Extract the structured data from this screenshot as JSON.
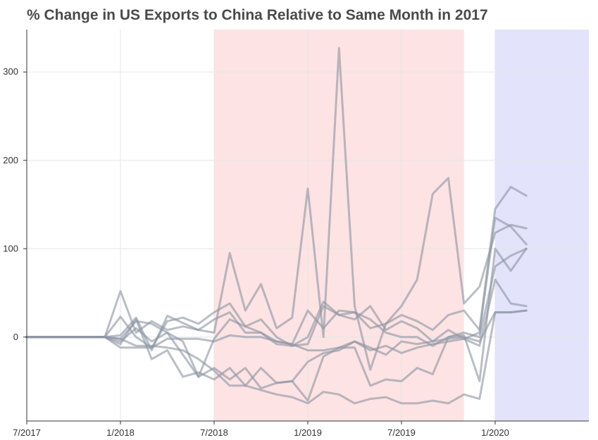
{
  "chart_data": {
    "type": "line",
    "title": "% Change in US Exports to China Relative to Same Month in 2017",
    "xlabel": "",
    "ylabel": "",
    "x": [
      "2017-07",
      "2017-08",
      "2017-09",
      "2017-10",
      "2017-11",
      "2017-12",
      "2018-01",
      "2018-02",
      "2018-03",
      "2018-04",
      "2018-05",
      "2018-06",
      "2018-07",
      "2018-08",
      "2018-09",
      "2018-10",
      "2018-11",
      "2018-12",
      "2019-01",
      "2019-02",
      "2019-03",
      "2019-04",
      "2019-05",
      "2019-06",
      "2019-07",
      "2019-08",
      "2019-09",
      "2019-10",
      "2019-11",
      "2019-12",
      "2020-01",
      "2020-02",
      "2020-03"
    ],
    "x_ticks": [
      "2017-07",
      "2018-01",
      "2018-07",
      "2019-01",
      "2019-07",
      "2020-01"
    ],
    "x_tick_labels": [
      "7/2017",
      "1/2018",
      "7/2018",
      "1/2019",
      "7/2019",
      "1/2020"
    ],
    "y_ticks": [
      0,
      100,
      200,
      300
    ],
    "y_tick_labels": [
      "0",
      "100",
      "200",
      "300"
    ],
    "xlim": [
      "2017-07",
      "2020-07"
    ],
    "ylim": [
      -95,
      348
    ],
    "grid": true,
    "legend": "none",
    "shaded_regions": [
      {
        "from": "2018-07",
        "to": "2019-11",
        "color": "#fde3e3"
      },
      {
        "from": "2020-01",
        "to": "2020-07",
        "color": "#e3e3fb"
      }
    ],
    "line_color": "#8e96a4",
    "axis_color": "#333333",
    "grid_color": "#e6e6e6",
    "series": [
      {
        "values": [
          0,
          0,
          0,
          0,
          0,
          0,
          2,
          22,
          -15,
          24,
          16,
          8,
          5,
          95,
          30,
          60,
          10,
          22,
          168,
          0,
          327,
          35,
          -37,
          15,
          35,
          65,
          162,
          180,
          38,
          57,
          118,
          127,
          123
        ]
      },
      {
        "values": [
          0,
          0,
          0,
          0,
          0,
          0,
          52,
          5,
          18,
          8,
          12,
          8,
          20,
          28,
          5,
          5,
          -5,
          -8,
          30,
          10,
          30,
          28,
          10,
          15,
          25,
          18,
          8,
          25,
          30,
          8,
          145,
          170,
          160
        ]
      },
      {
        "values": [
          0,
          0,
          0,
          0,
          0,
          0,
          23,
          0,
          -12,
          18,
          22,
          15,
          28,
          38,
          12,
          5,
          -8,
          -10,
          0,
          40,
          25,
          20,
          35,
          8,
          18,
          10,
          -5,
          8,
          -2,
          5,
          135,
          125,
          105
        ]
      },
      {
        "values": [
          0,
          0,
          0,
          0,
          0,
          0,
          -2,
          18,
          15,
          5,
          -5,
          -45,
          -2,
          20,
          12,
          20,
          0,
          -10,
          -8,
          35,
          25,
          28,
          20,
          5,
          0,
          0,
          -10,
          0,
          2,
          -50,
          100,
          75,
          100
        ]
      },
      {
        "values": [
          0,
          0,
          0,
          0,
          0,
          0,
          -5,
          10,
          -5,
          5,
          -20,
          -45,
          -35,
          -48,
          -35,
          -58,
          -52,
          -50,
          -72,
          -22,
          -12,
          -12,
          -55,
          -48,
          -50,
          -35,
          -42,
          0,
          5,
          0,
          80,
          92,
          100
        ]
      },
      {
        "values": [
          0,
          0,
          0,
          0,
          0,
          0,
          -8,
          20,
          -25,
          -15,
          -45,
          -40,
          -48,
          -35,
          -55,
          -35,
          -52,
          -50,
          -28,
          -18,
          -15,
          -5,
          -15,
          -10,
          -18,
          -12,
          -8,
          -5,
          -2,
          -10,
          65,
          38,
          35
        ]
      },
      {
        "values": [
          0,
          0,
          0,
          0,
          0,
          0,
          -12,
          -12,
          -12,
          -2,
          -2,
          -2,
          -5,
          2,
          0,
          0,
          -5,
          -8,
          -15,
          -15,
          -12,
          -5,
          -12,
          -20,
          -5,
          -8,
          -5,
          -2,
          0,
          -5,
          28,
          28,
          30
        ]
      },
      {
        "values": [
          0,
          0,
          0,
          0,
          0,
          0,
          -2,
          -10,
          -10,
          -12,
          -15,
          -25,
          -38,
          -55,
          -55,
          -60,
          -65,
          -68,
          -75,
          -62,
          -65,
          -75,
          -70,
          -68,
          -75,
          -75,
          -72,
          -75,
          -65,
          -70,
          28,
          28,
          30
        ]
      }
    ]
  }
}
